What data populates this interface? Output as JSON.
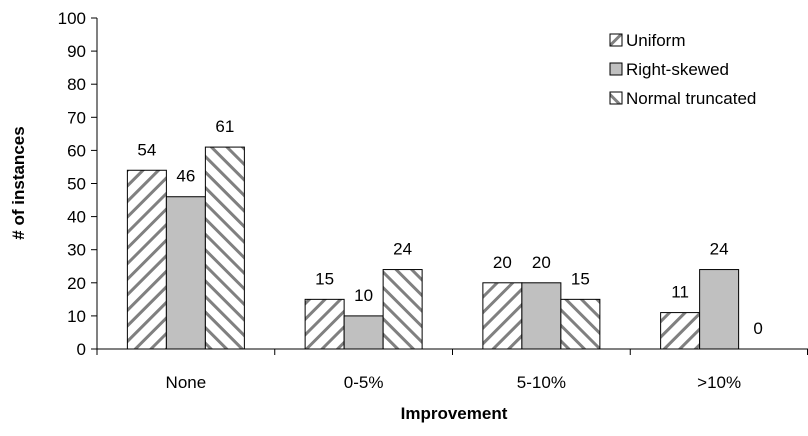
{
  "chart_data": {
    "type": "bar",
    "title": "",
    "xlabel": "Improvement",
    "ylabel": "# of instances",
    "categories": [
      "None",
      "0-5%",
      "5-10%",
      ">10%"
    ],
    "series": [
      {
        "name": "Uniform",
        "values": [
          54,
          15,
          20,
          11
        ],
        "fill": "#ffffff",
        "hatch": "forward-diagonal",
        "hatch_color": "#808080"
      },
      {
        "name": "Right-skewed",
        "values": [
          46,
          10,
          20,
          24
        ],
        "fill": "#c0c0c0",
        "hatch": "none"
      },
      {
        "name": "Normal truncated",
        "values": [
          61,
          24,
          15,
          0
        ],
        "fill": "#ffffff",
        "hatch": "back-diagonal",
        "hatch_color": "#808080"
      }
    ],
    "ylim": [
      0,
      100
    ],
    "yticks": [
      0,
      10,
      20,
      30,
      40,
      50,
      60,
      70,
      80,
      90,
      100
    ],
    "data_labels": true,
    "grid": false,
    "legend_position": "top-right"
  }
}
